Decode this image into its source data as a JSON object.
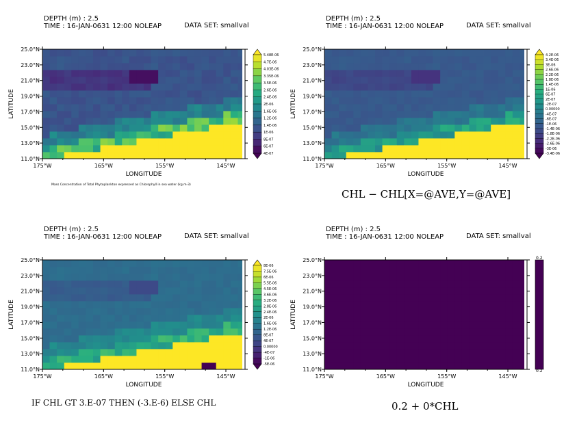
{
  "chart_data": [
    {
      "type": "heatmap",
      "header": {
        "depth": "DEPTH (m) : 2.5",
        "time": "TIME : 16-JAN-0631 12:00 NOLEAP",
        "dataset": "DATA SET: smallval"
      },
      "xlabel": "LONGITUDE",
      "ylabel": "LATITUDE",
      "xticks": [
        "175°W",
        "165°W",
        "155°W",
        "145°W"
      ],
      "yticks": [
        "25.0°N",
        "23.0°N",
        "21.0°N",
        "19.0°N",
        "17.0°N",
        "15.0°N",
        "13.0°N",
        "11.0°N"
      ],
      "colorbar_labels": [
        "5.48E-06",
        "4.7E-06",
        "4.03E-06",
        "3.35E-06",
        "3.5E-06",
        "2.6E-06",
        "2.4E-06",
        "2E-06",
        "1.6E-06",
        "1.2E-06",
        "1.4E-06",
        "1E-06",
        "8E-07",
        "6E-07",
        "4E-07"
      ],
      "caption": "Mass Concentration of Total Phytoplankton expressed as Chlorophyll in sea water (kg m-3)",
      "caption_size": "tiny",
      "pattern": "chl"
    },
    {
      "type": "heatmap",
      "header": {
        "depth": "DEPTH (m) : 2.5",
        "time": "TIME : 16-JAN-0631 12:00 NOLEAP",
        "dataset": "DATA SET: smallval"
      },
      "xlabel": "LONGITUDE",
      "ylabel": "LATITUDE",
      "xticks": [
        "175°W",
        "165°W",
        "155°W",
        "145°W"
      ],
      "yticks": [
        "25.0°N",
        "23.0°N",
        "21.0°N",
        "19.0°N",
        "17.0°N",
        "15.0°N",
        "13.0°N",
        "11.0°N"
      ],
      "colorbar_labels": [
        "4.2E-06",
        "3.4E-06",
        "3E-06",
        "2.6E-06",
        "2.2E-06",
        "1.8E-06",
        "1.4E-06",
        "1E-06",
        "6E-07",
        "2E-07",
        "-2E-07",
        "0.00000",
        "-4E-07",
        "-6E-07",
        "-1E-06",
        "-1.4E-06",
        "-1.8E-06",
        "-2.2E-06",
        "-2.6E-06",
        "-3E-06",
        "-3.4E-06"
      ],
      "caption": "CHL − CHL[X=@AVE,Y=@AVE]",
      "caption_size": "big",
      "pattern": "anom"
    },
    {
      "type": "heatmap",
      "header": {
        "depth": "DEPTH (m) : 2.5",
        "time": "TIME : 16-JAN-0631 12:00 NOLEAP",
        "dataset": "DATA SET: smallval"
      },
      "xlabel": "LONGITUDE",
      "ylabel": "LATITUDE",
      "xticks": [
        "175°W",
        "165°W",
        "155°W",
        "145°W"
      ],
      "yticks": [
        "25.0°N",
        "23.0°N",
        "21.0°N",
        "19.0°N",
        "17.0°N",
        "15.0°N",
        "13.0°N",
        "11.0°N"
      ],
      "colorbar_labels": [
        "8E-06",
        "7.5E-06",
        "6E-06",
        "5.5E-06",
        "4.5E-06",
        "3.6E-06",
        "3.2E-06",
        "2.8E-06",
        "2.4E-06",
        "2E-06",
        "1.6E-06",
        "1.2E-06",
        "8E-07",
        "4E-07",
        "0.00000",
        "-4E-07",
        "-1E-06",
        "-5E-06"
      ],
      "caption": "IF CHL GT 3.E-07 THEN (-3.E-6) ELSE CHL",
      "caption_size": "mid",
      "pattern": "masked"
    },
    {
      "type": "heatmap",
      "header": {
        "depth": "DEPTH (m) : 2.5",
        "time": "TIME : 16-JAN-0631 12:00 NOLEAP",
        "dataset": "DATA SET: smallval"
      },
      "xlabel": "LONGITUDE",
      "ylabel": "LATITUDE",
      "xticks": [
        "175°W",
        "165°W",
        "155°W",
        "145°W"
      ],
      "yticks": [
        "25.0°N",
        "23.0°N",
        "21.0°N",
        "19.0°N",
        "17.0°N",
        "15.0°N",
        "13.0°N",
        "11.0°N"
      ],
      "colorbar_labels": [
        "0.2",
        "0.2"
      ],
      "caption": "0.2 + 0*CHL",
      "caption_size": "big",
      "pattern": "constant"
    }
  ]
}
